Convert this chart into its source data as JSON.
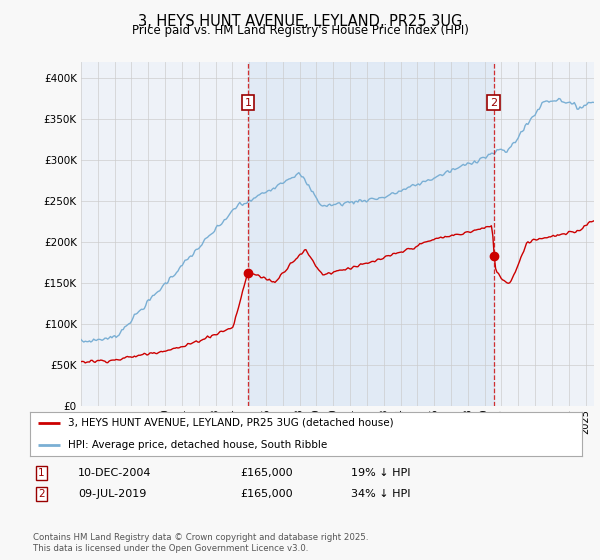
{
  "title": "3, HEYS HUNT AVENUE, LEYLAND, PR25 3UG",
  "subtitle": "Price paid vs. HM Land Registry's House Price Index (HPI)",
  "red_label": "3, HEYS HUNT AVENUE, LEYLAND, PR25 3UG (detached house)",
  "blue_label": "HPI: Average price, detached house, South Ribble",
  "annotation1": {
    "num": "1",
    "date": "10-DEC-2004",
    "price": "£165,000",
    "pct": "19% ↓ HPI"
  },
  "annotation2": {
    "num": "2",
    "date": "09-JUL-2019",
    "price": "£165,000",
    "pct": "34% ↓ HPI"
  },
  "footer": "Contains HM Land Registry data © Crown copyright and database right 2025.\nThis data is licensed under the Open Government Licence v3.0.",
  "ylim": [
    0,
    420000
  ],
  "xlim": [
    1995,
    2025.5
  ],
  "fig_bg": "#f8f8f8",
  "plot_bg": "#eef2f8",
  "shade_color": "#dce8f5",
  "red_color": "#cc0000",
  "blue_color": "#7aafd4",
  "grid_color": "#cccccc",
  "marker1_x": 2004.92,
  "marker2_x": 2019.53,
  "sale1_price": 165000,
  "sale2_price": 165000
}
